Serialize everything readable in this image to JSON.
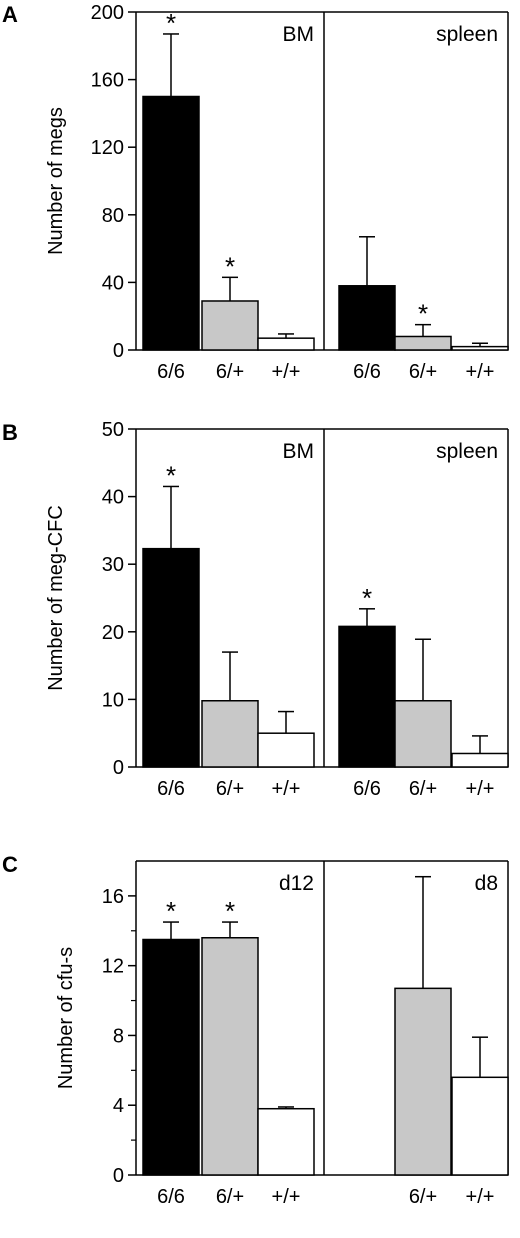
{
  "chart_data": [
    {
      "panel_label": "A",
      "type": "bar",
      "ylabel": "Number of megs",
      "ylim": [
        0,
        200
      ],
      "yticks": [
        0,
        40,
        80,
        120,
        160,
        200
      ],
      "minor_ticks": false,
      "groups": [
        {
          "name": "BM",
          "bars": [
            {
              "category": "6/6",
              "value": 150,
              "error": 37,
              "fill": "black",
              "significant": true
            },
            {
              "category": "6/+",
              "value": 29,
              "error": 14,
              "fill": "gray",
              "significant": true
            },
            {
              "category": "+/+",
              "value": 7,
              "error": 2.5,
              "fill": "white",
              "significant": false
            }
          ]
        },
        {
          "name": "spleen",
          "bars": [
            {
              "category": "6/6",
              "value": 38,
              "error": 29,
              "fill": "black",
              "significant": false
            },
            {
              "category": "6/+",
              "value": 8,
              "error": 7,
              "fill": "gray",
              "significant": true
            },
            {
              "category": "+/+",
              "value": 2,
              "error": 2,
              "fill": "white",
              "significant": false
            }
          ]
        }
      ]
    },
    {
      "panel_label": "B",
      "type": "bar",
      "ylabel": "Number of meg-CFC",
      "ylim": [
        0,
        50
      ],
      "yticks": [
        0,
        10,
        20,
        30,
        40,
        50
      ],
      "minor_ticks": false,
      "groups": [
        {
          "name": "BM",
          "bars": [
            {
              "category": "6/6",
              "value": 32.3,
              "error": 9.2,
              "fill": "black",
              "significant": true
            },
            {
              "category": "6/+",
              "value": 9.8,
              "error": 7.2,
              "fill": "gray",
              "significant": false
            },
            {
              "category": "+/+",
              "value": 5,
              "error": 3.2,
              "fill": "white",
              "significant": false
            }
          ]
        },
        {
          "name": "spleen",
          "bars": [
            {
              "category": "6/6",
              "value": 20.8,
              "error": 2.6,
              "fill": "black",
              "significant": true
            },
            {
              "category": "6/+",
              "value": 9.8,
              "error": 9.1,
              "fill": "gray",
              "significant": false
            },
            {
              "category": "+/+",
              "value": 2,
              "error": 2.6,
              "fill": "white",
              "significant": false
            }
          ]
        }
      ]
    },
    {
      "panel_label": "C",
      "type": "bar",
      "ylabel": "Number of cfu-s",
      "ylim": [
        0,
        18
      ],
      "yticks": [
        0,
        4,
        8,
        12,
        16
      ],
      "minor_ticks": true,
      "groups": [
        {
          "name": "d12",
          "bars": [
            {
              "category": "6/6",
              "value": 13.5,
              "error": 1.0,
              "fill": "black",
              "significant": true
            },
            {
              "category": "6/+",
              "value": 13.6,
              "error": 0.9,
              "fill": "gray",
              "significant": true
            },
            {
              "category": "+/+",
              "value": 3.8,
              "error": 0.1,
              "fill": "white",
              "significant": false
            }
          ]
        },
        {
          "name": "d8",
          "bars": [
            {
              "category": "6/6",
              "value": null,
              "error": null,
              "fill": "none",
              "significant": false
            },
            {
              "category": "6/+",
              "value": 10.7,
              "error": 6.4,
              "fill": "gray",
              "significant": false
            },
            {
              "category": "+/+",
              "value": 5.6,
              "error": 2.3,
              "fill": "white",
              "significant": false
            }
          ]
        }
      ]
    }
  ],
  "significance_marker": "*",
  "colors": {
    "black": "#000000",
    "gray": "#c8c8c8",
    "white": "#ffffff",
    "axis": "#000000"
  }
}
